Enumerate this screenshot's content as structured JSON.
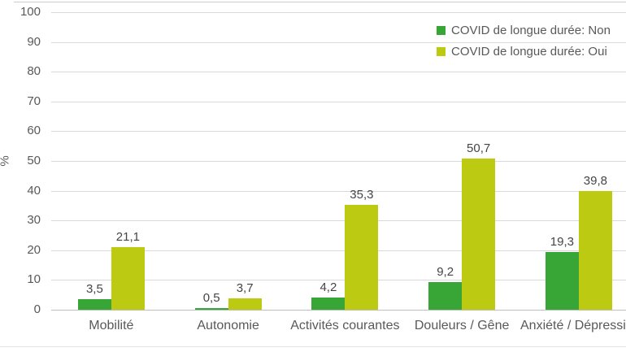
{
  "chart_data": {
    "type": "bar",
    "title": "",
    "xlabel": "",
    "ylabel": "%",
    "ylim": [
      0,
      100
    ],
    "yticks": [
      0,
      10,
      20,
      30,
      40,
      50,
      60,
      70,
      80,
      90,
      100
    ],
    "grid": true,
    "legend_position": "top-right",
    "categories": [
      "Mobilité",
      "Autonomie",
      "Activités courantes",
      "Douleurs / Gêne",
      "Anxiété / Dépression"
    ],
    "series": [
      {
        "name": "COVID de longue durée: Non",
        "color": "#38a537",
        "values": [
          3.5,
          0.5,
          4.2,
          9.2,
          19.3
        ],
        "value_labels": [
          "3,5",
          "0,5",
          "4,2",
          "9,2",
          "19,3"
        ]
      },
      {
        "name": "COVID de longue durée: Oui",
        "color": "#bccb12",
        "values": [
          21.1,
          3.7,
          35.3,
          50.7,
          39.8
        ],
        "value_labels": [
          "21,1",
          "3,7",
          "35,3",
          "50,7",
          "39,8"
        ]
      }
    ]
  },
  "colors": {
    "axis_text": "#595959",
    "data_label_text": "#454545",
    "gridline": "#d9d9d9",
    "baseline": "#bfbfbf",
    "background": "#ffffff"
  }
}
